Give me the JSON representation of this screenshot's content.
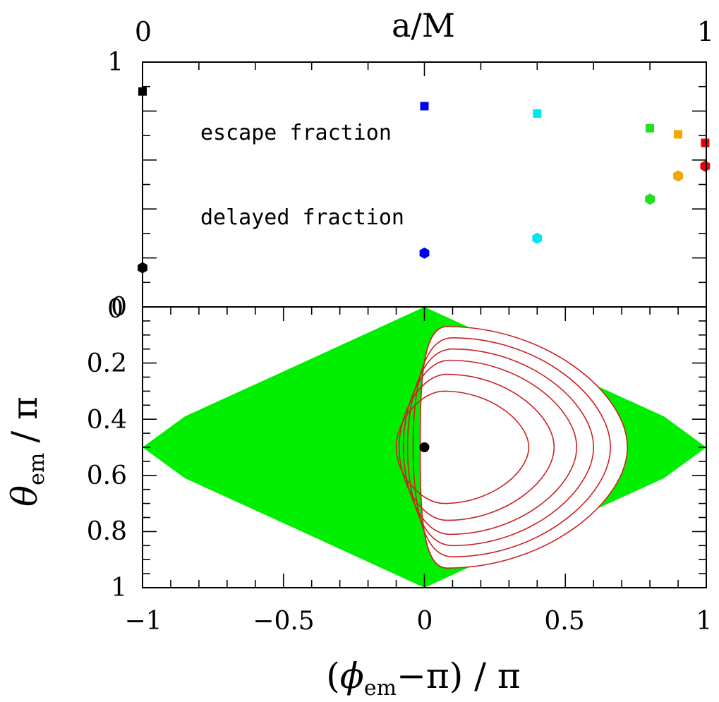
{
  "colors": {
    "region_fill": "#00ee00",
    "contour": "#cc2222",
    "axis": "#000000"
  },
  "chart_data": [
    {
      "type": "scatter",
      "title": "",
      "top_axis": {
        "label": "a/M",
        "ticks": [
          {
            "value": 0,
            "label": "0"
          },
          {
            "value": 1,
            "label": "1"
          }
        ]
      },
      "xlim": [
        0,
        1
      ],
      "ylim": [
        0,
        1
      ],
      "y_ticks": [
        {
          "value": 1,
          "label": "1"
        },
        {
          "value": 0,
          "label": "0"
        }
      ],
      "annotations": [
        "escape fraction",
        "delayed fraction"
      ],
      "series": [
        {
          "marker": "square",
          "points": [
            {
              "x": 0.0,
              "y": 0.88,
              "color": "#000000"
            },
            {
              "x": 0.5,
              "y": 0.82,
              "color": "#0000ee"
            },
            {
              "x": 0.7,
              "y": 0.79,
              "color": "#00e5ee"
            },
            {
              "x": 0.9,
              "y": 0.73,
              "color": "#22dd22"
            },
            {
              "x": 0.95,
              "y": 0.705,
              "color": "#f0a800"
            },
            {
              "x": 0.998,
              "y": 0.67,
              "color": "#ee0000"
            }
          ]
        },
        {
          "marker": "hexagon",
          "points": [
            {
              "x": 0.0,
              "y": 0.16,
              "color": "#000000"
            },
            {
              "x": 0.5,
              "y": 0.22,
              "color": "#0000ee"
            },
            {
              "x": 0.7,
              "y": 0.28,
              "color": "#00e5ee"
            },
            {
              "x": 0.9,
              "y": 0.44,
              "color": "#22dd22"
            },
            {
              "x": 0.95,
              "y": 0.535,
              "color": "#f0a800"
            },
            {
              "x": 0.998,
              "y": 0.575,
              "color": "#ee0000"
            }
          ]
        }
      ]
    },
    {
      "type": "area",
      "title": "",
      "xlabel_parts": {
        "open": "(",
        "symbol": "ϕ",
        "sub": "em",
        "rest": "−π)  /  π"
      },
      "ylabel_parts": {
        "symbol": "θ",
        "sub": "em",
        "rest": "/  π"
      },
      "xlim": [
        -1,
        1
      ],
      "ylim": [
        1,
        0
      ],
      "x_ticks": [
        {
          "value": -1,
          "label": "−1"
        },
        {
          "value": -0.5,
          "label": "−0.5"
        },
        {
          "value": 0,
          "label": "0"
        },
        {
          "value": 0.5,
          "label": "0.5"
        },
        {
          "value": 1,
          "label": "1"
        }
      ],
      "y_ticks": [
        {
          "value": 0,
          "label": "0"
        },
        {
          "value": 0.2,
          "label": "0.2"
        },
        {
          "value": 0.4,
          "label": "0.4"
        },
        {
          "value": 0.6,
          "label": "0.6"
        },
        {
          "value": 0.8,
          "label": "0.8"
        },
        {
          "value": 1,
          "label": "1"
        }
      ],
      "region_boundary": [
        [
          0,
          0
        ],
        [
          0.5,
          0.23
        ],
        [
          0.85,
          0.39
        ],
        [
          1,
          0.5
        ],
        [
          0.85,
          0.61
        ],
        [
          0.5,
          0.77
        ],
        [
          0,
          1
        ],
        [
          -0.5,
          0.77
        ],
        [
          -0.85,
          0.61
        ],
        [
          -1,
          0.5
        ],
        [
          -0.85,
          0.39
        ],
        [
          -0.5,
          0.23
        ]
      ],
      "center_point": {
        "x": 0,
        "y": 0.5
      },
      "contours": [
        {
          "left": -0.015,
          "right": 0.72,
          "top": 0.07,
          "peak": 0.08
        },
        {
          "left": -0.04,
          "right": 0.66,
          "top": 0.11,
          "peak": 0.1
        },
        {
          "left": -0.06,
          "right": 0.6,
          "top": 0.15,
          "peak": 0.1
        },
        {
          "left": -0.075,
          "right": 0.54,
          "top": 0.19,
          "peak": 0.09
        },
        {
          "left": -0.09,
          "right": 0.46,
          "top": 0.24,
          "peak": 0.08
        },
        {
          "left": -0.1,
          "right": 0.37,
          "top": 0.3,
          "peak": 0.07
        }
      ]
    }
  ]
}
